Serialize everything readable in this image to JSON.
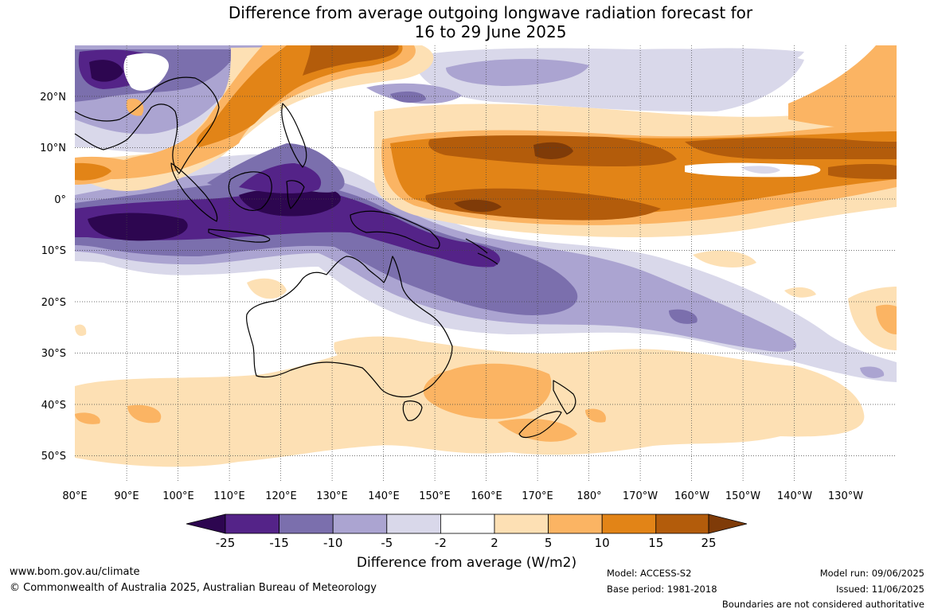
{
  "title": {
    "line1": "Difference from average outgoing longwave radiation forecast for",
    "line2": "16 to 29 June 2025"
  },
  "map": {
    "lon_ticks": [
      "80°E",
      "90°E",
      "100°E",
      "110°E",
      "120°E",
      "130°E",
      "140°E",
      "150°E",
      "160°E",
      "170°E",
      "180°",
      "170°W",
      "160°W",
      "150°W",
      "140°W",
      "130°W"
    ],
    "lat_ticks": [
      "20°N",
      "10°N",
      "0°",
      "10°S",
      "20°S",
      "30°S",
      "40°S",
      "50°S"
    ],
    "colors": {
      "deep_purple": "#2d0650",
      "purple_15": "#542388",
      "purple_10": "#7b6fad",
      "purple_5": "#aba4d1",
      "purple_2": "#d9d8ea",
      "white": "#ffffff",
      "orange_2": "#fde0b4",
      "orange_5": "#fbb463",
      "orange_10": "#e28417",
      "orange_15": "#b35c0b",
      "deep_orange": "#7f3b08"
    }
  },
  "colorbar": {
    "labels": [
      "-25",
      "-15",
      "-10",
      "-5",
      "-2",
      "2",
      "5",
      "10",
      "15",
      "25"
    ],
    "title": "Difference from average (W/m2)"
  },
  "footer": {
    "website": "www.bom.gov.au/climate",
    "copyright": "© Commonwealth of Australia 2025, Australian Bureau of Meteorology",
    "model": "Model: ACCESS-S2",
    "base_period": "Base period: 1981-2018",
    "model_run": "Model run: 09/06/2025",
    "issued": "Issued: 11/06/2025",
    "boundaries": "Boundaries are not considered authoritative"
  }
}
